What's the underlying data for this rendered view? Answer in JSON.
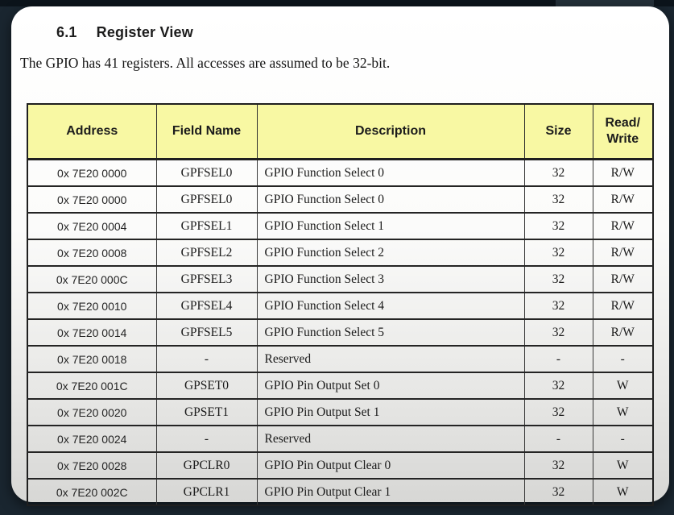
{
  "heading": {
    "number": "6.1",
    "title": "Register View"
  },
  "intro_text": "The GPIO has 41 registers. All accesses are assumed to be 32-bit.",
  "table": {
    "headers": {
      "address": "Address",
      "field": "Field Name",
      "description": "Description",
      "size": "Size",
      "rw": "Read/\nWrite"
    },
    "rows": [
      {
        "address": "0x 7E20 0000",
        "field": "GPFSEL0",
        "description": "GPIO Function Select 0",
        "size": "32",
        "rw": "R/W"
      },
      {
        "address": "0x 7E20 0000",
        "field": "GPFSEL0",
        "description": "GPIO Function Select 0",
        "size": "32",
        "rw": "R/W"
      },
      {
        "address": "0x 7E20 0004",
        "field": "GPFSEL1",
        "description": "GPIO Function Select 1",
        "size": "32",
        "rw": "R/W"
      },
      {
        "address": "0x 7E20 0008",
        "field": "GPFSEL2",
        "description": "GPIO Function Select 2",
        "size": "32",
        "rw": "R/W"
      },
      {
        "address": "0x 7E20 000C",
        "field": "GPFSEL3",
        "description": "GPIO Function Select 3",
        "size": "32",
        "rw": "R/W"
      },
      {
        "address": "0x 7E20 0010",
        "field": "GPFSEL4",
        "description": "GPIO Function Select 4",
        "size": "32",
        "rw": "R/W"
      },
      {
        "address": "0x 7E20 0014",
        "field": "GPFSEL5",
        "description": "GPIO Function Select 5",
        "size": "32",
        "rw": "R/W"
      },
      {
        "address": "0x 7E20 0018",
        "field": "-",
        "description": "Reserved",
        "size": "-",
        "rw": "-"
      },
      {
        "address": "0x 7E20 001C",
        "field": "GPSET0",
        "description": "GPIO Pin Output Set 0",
        "size": "32",
        "rw": "W"
      },
      {
        "address": "0x 7E20 0020",
        "field": "GPSET1",
        "description": "GPIO Pin Output Set 1",
        "size": "32",
        "rw": "W"
      },
      {
        "address": "0x 7E20 0024",
        "field": "-",
        "description": "Reserved",
        "size": "-",
        "rw": "-"
      },
      {
        "address": "0x 7E20 0028",
        "field": "GPCLR0",
        "description": "GPIO Pin Output Clear 0",
        "size": "32",
        "rw": "W"
      },
      {
        "address": "0x 7E20 002C",
        "field": "GPCLR1",
        "description": "GPIO Pin Output Clear 1",
        "size": "32",
        "rw": "W"
      }
    ]
  },
  "colors": {
    "backdrop": "#1a2630",
    "page_top": "#ffffff",
    "page_bottom": "#d7d7d5",
    "table_header_bg": "#f8f8a3",
    "table_border": "#1f1f1f",
    "text": "#1a1a1a"
  }
}
